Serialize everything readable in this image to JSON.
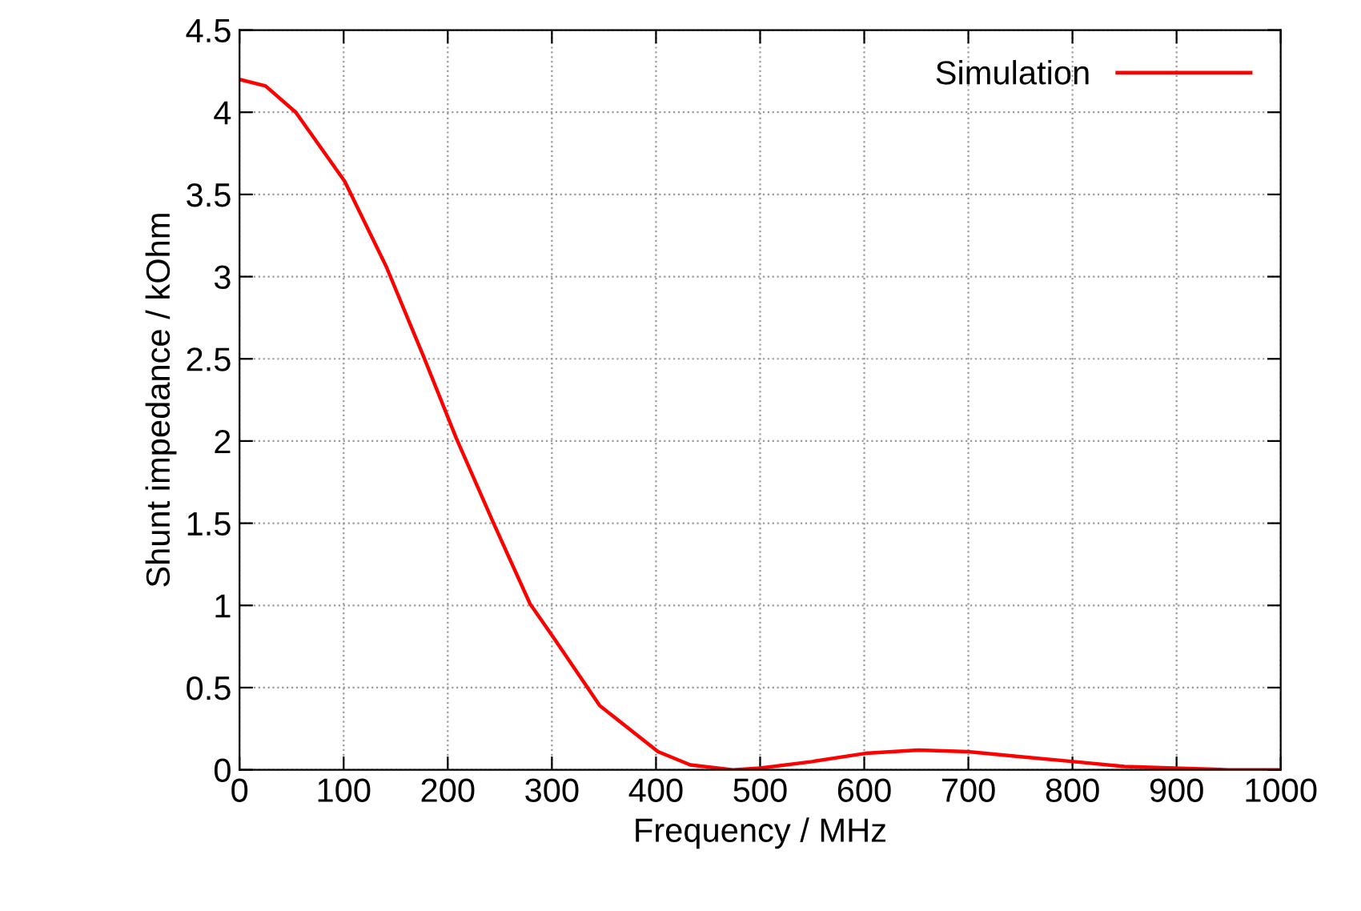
{
  "chart_data": {
    "type": "line",
    "xlabel": "Frequency / MHz",
    "ylabel": "Shunt impedance / kOhm",
    "xlim": [
      0,
      1000
    ],
    "ylim": [
      0,
      4.5
    ],
    "xticks": [
      0,
      100,
      200,
      300,
      400,
      500,
      600,
      700,
      800,
      900,
      1000
    ],
    "yticks": [
      0,
      {
        "value": 0.5,
        "label": "0.5"
      },
      1,
      {
        "value": 1.5,
        "label": "1.5"
      },
      2,
      {
        "value": 2.5,
        "label": "2.5"
      },
      3,
      {
        "value": 3.5,
        "label": "3.5"
      },
      4,
      {
        "value": 4.5,
        "label": "4.5"
      }
    ],
    "grid": true,
    "legend": "top right",
    "marker": "none",
    "line_style": "solid",
    "series": [
      {
        "name": "Simulation",
        "color": "#ff0000",
        "x": [
          0,
          25,
          54,
          101,
          141,
          177,
          208,
          244,
          279,
          302,
          346,
          402,
          433,
          474,
          500,
          550,
          601,
          652,
          700,
          750,
          801,
          850,
          898,
          950,
          1000
        ],
        "values": [
          4.2,
          4.16,
          4.0,
          3.58,
          3.06,
          2.51,
          2.02,
          1.5,
          1.01,
          0.8,
          0.39,
          0.11,
          0.03,
          0.0,
          0.01,
          0.05,
          0.1,
          0.12,
          0.11,
          0.08,
          0.05,
          0.02,
          0.01,
          0.0,
          0.0
        ]
      }
    ]
  }
}
